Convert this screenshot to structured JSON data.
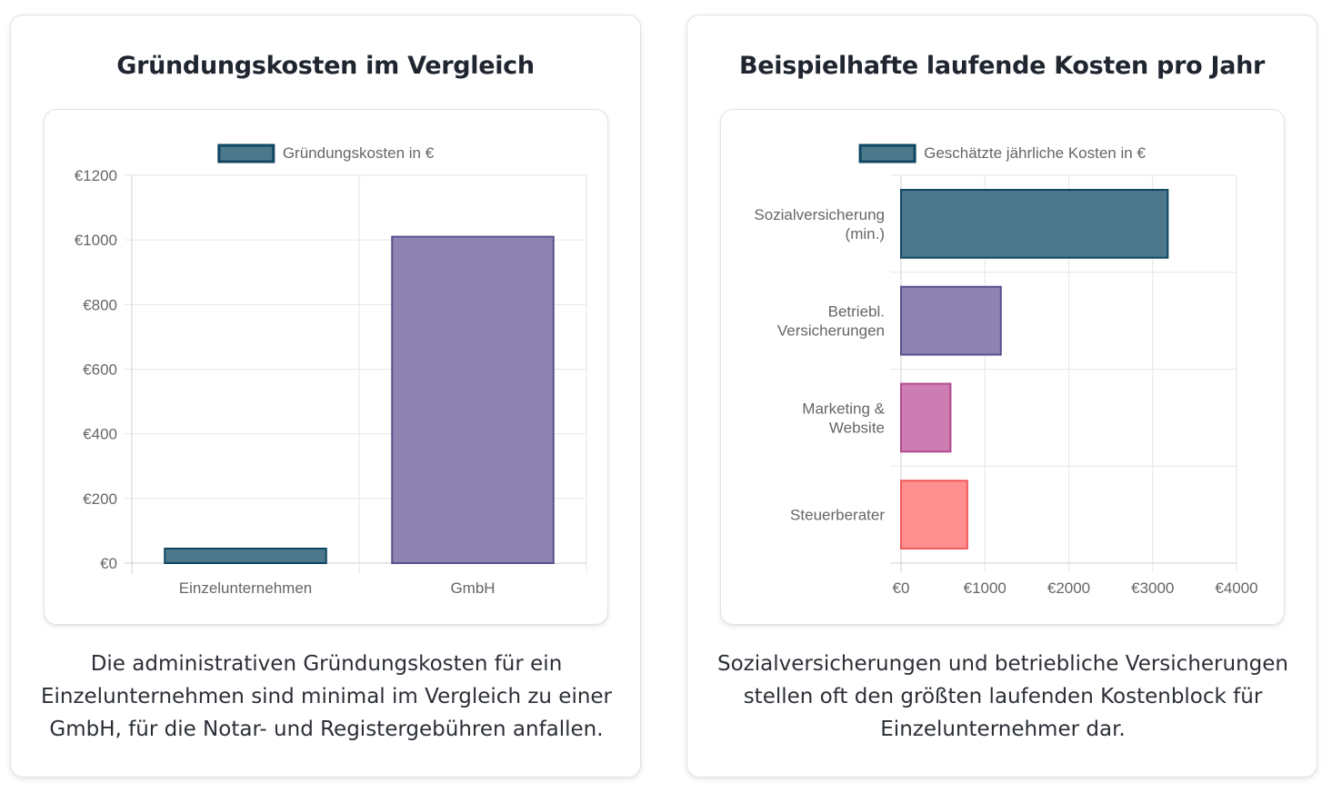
{
  "cards": [
    {
      "title": "Gründungskosten im Vergleich",
      "caption": "Die administrativen Gründungskosten für ein Einzelunternehmen sind minimal im Vergleich zu einer GmbH, für die Notar- und Registergebühren anfallen.",
      "chart_data": {
        "type": "bar",
        "orientation": "vertical",
        "categories": [
          "Einzelunternehmen",
          "GmbH"
        ],
        "series": [
          {
            "name": "Gründungskosten in €",
            "values": [
              45,
              1010
            ]
          }
        ],
        "bar_colors": [
          "#2e6279",
          "#7c70a6"
        ],
        "bar_borders": [
          "#0f4661",
          "#5c4f8c"
        ],
        "ylim": [
          0,
          1200
        ],
        "yticks": [
          0,
          200,
          400,
          600,
          800,
          1000,
          1200
        ],
        "tick_prefix": "€",
        "legend": "top-center",
        "grid": true
      }
    },
    {
      "title": "Beispielhafte laufende Kosten pro Jahr",
      "caption": "Sozialversicherungen und betriebliche Versicherungen stellen oft den größten laufenden Kostenblock für Einzelunternehmer dar.",
      "chart_data": {
        "type": "bar",
        "orientation": "horizontal",
        "categories": [
          [
            "Sozialversicherung",
            "(min.)"
          ],
          [
            "Betriebl.",
            "Versicherungen"
          ],
          [
            "Marketing &",
            "Website"
          ],
          [
            "Steuerberater"
          ]
        ],
        "series": [
          {
            "name": "Geschätzte jährliche Kosten in €",
            "values": [
              3180,
              1190,
              590,
              790
            ]
          }
        ],
        "bar_colors": [
          "#2e6279",
          "#7c70a6",
          "#c668a6",
          "#ff7b7b"
        ],
        "bar_borders": [
          "#0f4661",
          "#5c4f8c",
          "#b14a8e",
          "#f05a5a"
        ],
        "legend_color": "#2e6279",
        "legend_border": "#0f4661",
        "xlim": [
          0,
          4000
        ],
        "xticks": [
          0,
          1000,
          2000,
          3000,
          4000
        ],
        "tick_prefix": "€",
        "legend": "top-center",
        "grid": true
      }
    }
  ]
}
